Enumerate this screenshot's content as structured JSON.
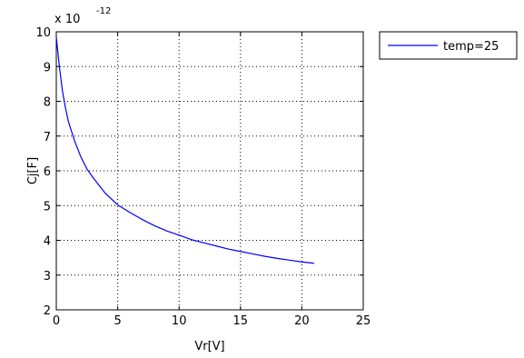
{
  "chart_data": {
    "type": "line",
    "title": "",
    "xlabel": "Vr[V]",
    "ylabel": "Cj[F]",
    "y_exponent_prefix": "x 10",
    "y_exponent": "-12",
    "xlim": [
      0,
      25
    ],
    "ylim": [
      2,
      10
    ],
    "xticks": [
      0,
      5,
      10,
      15,
      20,
      25
    ],
    "yticks": [
      2,
      3,
      4,
      5,
      6,
      7,
      8,
      9,
      10
    ],
    "grid": true,
    "grid_style": "dotted",
    "legend_position": "outside-top-right",
    "series": [
      {
        "name": "temp=25",
        "color": "#0000ff",
        "x": [
          0,
          0.25,
          0.5,
          0.75,
          1,
          1.5,
          2,
          2.5,
          3,
          4,
          5,
          6,
          7,
          8,
          9,
          10,
          11,
          12,
          13,
          14,
          15,
          16,
          17,
          18,
          19,
          20,
          21
        ],
        "y": [
          9.85,
          9.0,
          8.3,
          7.8,
          7.4,
          6.85,
          6.4,
          6.05,
          5.8,
          5.35,
          5.02,
          4.8,
          4.6,
          4.42,
          4.27,
          4.15,
          4.02,
          3.93,
          3.84,
          3.75,
          3.68,
          3.61,
          3.54,
          3.48,
          3.43,
          3.38,
          3.34
        ]
      }
    ]
  }
}
